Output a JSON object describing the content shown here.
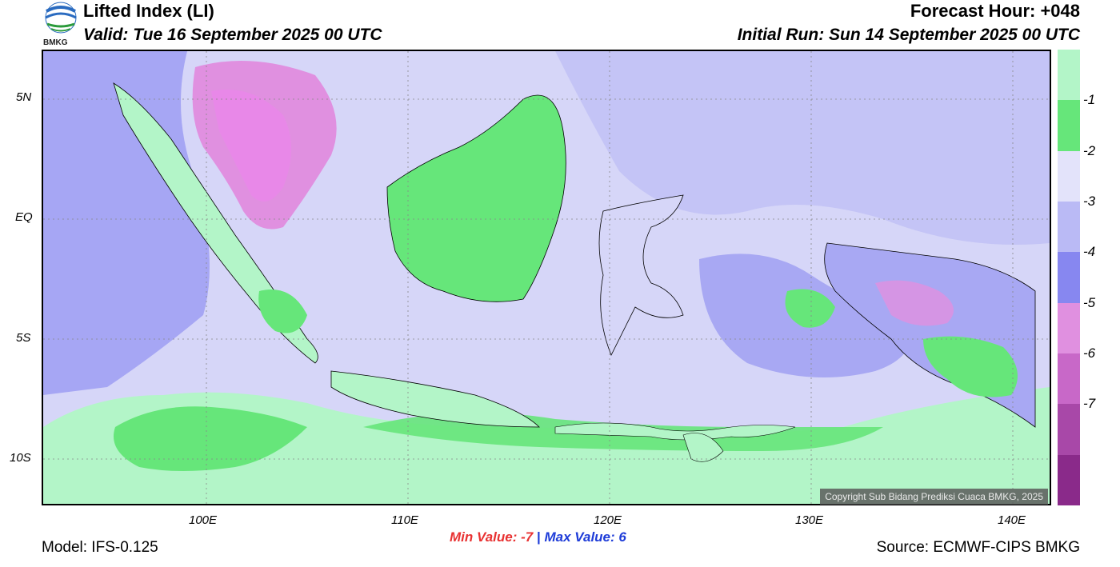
{
  "header": {
    "title": "Lifted Index (LI)",
    "valid": "Valid: Tue 16 September 2025 00 UTC",
    "forecast_hour": "Forecast Hour: +048",
    "initial_run": "Initial Run: Sun 14 September 2025 00 UTC",
    "logo_text": "BMKG"
  },
  "map": {
    "lat_labels": [
      "5N",
      "EQ",
      "5S",
      "10S"
    ],
    "lon_labels": [
      "100E",
      "110E",
      "120E",
      "130E",
      "140E"
    ],
    "copyright": "Copyright Sub Bidang Prediksi Cuaca BMKG, 2025"
  },
  "legend": {
    "labels": [
      "-1",
      "-2",
      "-3",
      "-4",
      "-5",
      "-6",
      "-7"
    ],
    "colors": [
      "#b3f5c8",
      "#66e67a",
      "#e3e3fa",
      "#babaf5",
      "#8787f0",
      "#e090e0",
      "#c868c8",
      "#a848a8",
      "#8a2a8a"
    ]
  },
  "stats": {
    "min_label": "Min Value:",
    "min_value": "-7",
    "separator": "|",
    "max_label": "Max Value:",
    "max_value": "6",
    "min_color": "#e83232",
    "max_color": "#1e3cd8"
  },
  "footer": {
    "model": "Model: IFS-0.125",
    "source": "Source: ECMWF-CIPS BMKG"
  }
}
